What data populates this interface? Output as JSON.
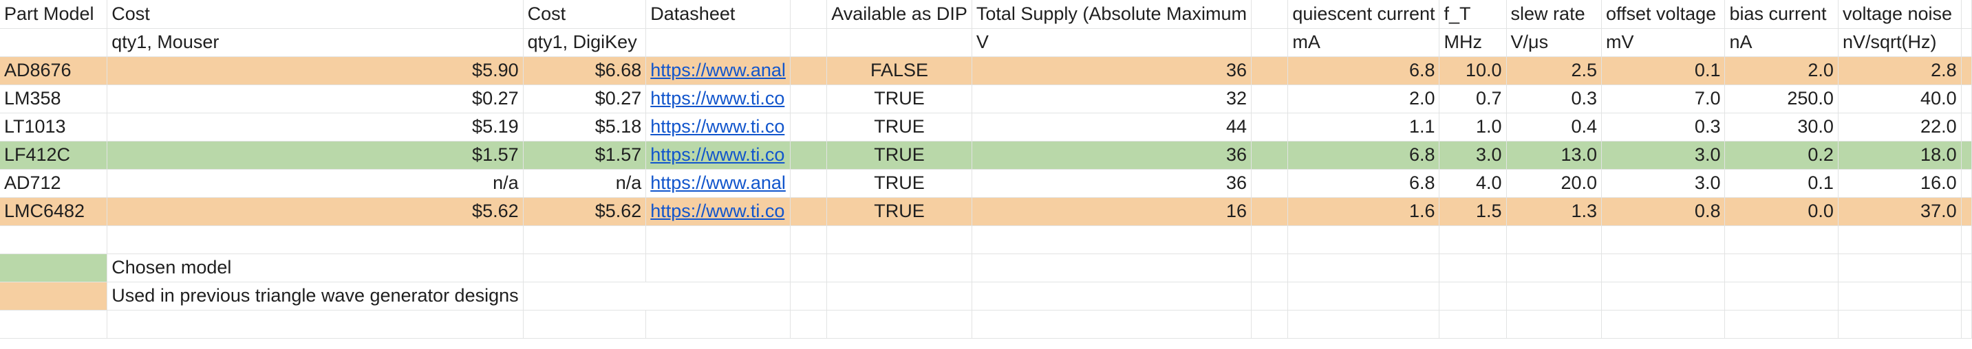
{
  "header": {
    "row1": [
      "Part Model",
      "Cost",
      "Cost",
      "Datasheet",
      "",
      "Available as DIP",
      "Total Supply (Absolute Maximum",
      "",
      "quiescent current",
      "f_T",
      "slew rate",
      "offset voltage",
      "bias current",
      "voltage noise",
      ""
    ],
    "row2": [
      "",
      "qty1, Mouser",
      "qty1, DigiKey",
      "",
      "",
      "",
      "V",
      "",
      "mA",
      "MHz",
      "V/μs",
      "mV",
      "nA",
      "nV/sqrt(Hz)",
      ""
    ]
  },
  "rows": [
    {
      "highlight": "orange",
      "model": "AD8676",
      "mouser": "$5.90",
      "digikey": "$6.68",
      "datasheet": "https://www.anal",
      "dip": "FALSE",
      "supply": "36",
      "iq": "6.8",
      "ft": "10.0",
      "slew": "2.5",
      "offset": "0.1",
      "bias": "2.0",
      "noise": "2.8"
    },
    {
      "highlight": "none",
      "model": "LM358",
      "mouser": "$0.27",
      "digikey": "$0.27",
      "datasheet": "https://www.ti.co",
      "dip": "TRUE",
      "supply": "32",
      "iq": "2.0",
      "ft": "0.7",
      "slew": "0.3",
      "offset": "7.0",
      "bias": "250.0",
      "noise": "40.0"
    },
    {
      "highlight": "none",
      "model": "LT1013",
      "mouser": "$5.19",
      "digikey": "$5.18",
      "datasheet": "https://www.ti.co",
      "dip": "TRUE",
      "supply": "44",
      "iq": "1.1",
      "ft": "1.0",
      "slew": "0.4",
      "offset": "0.3",
      "bias": "30.0",
      "noise": "22.0"
    },
    {
      "highlight": "green",
      "model": "LF412C",
      "mouser": "$1.57",
      "digikey": "$1.57",
      "datasheet": "https://www.ti.co",
      "dip": "TRUE",
      "supply": "36",
      "iq": "6.8",
      "ft": "3.0",
      "slew": "13.0",
      "offset": "3.0",
      "bias": "0.2",
      "noise": "18.0"
    },
    {
      "highlight": "none",
      "model": "AD712",
      "mouser": "n/a",
      "digikey": "n/a",
      "datasheet": "https://www.anal",
      "dip": "TRUE",
      "supply": "36",
      "iq": "6.8",
      "ft": "4.0",
      "slew": "20.0",
      "offset": "3.0",
      "bias": "0.1",
      "noise": "16.0"
    },
    {
      "highlight": "orange",
      "model": "LMC6482",
      "mouser": "$5.62",
      "digikey": "$5.62",
      "datasheet": "https://www.ti.co",
      "dip": "TRUE",
      "supply": "16",
      "iq": "1.6",
      "ft": "1.5",
      "slew": "1.3",
      "offset": "0.8",
      "bias": "0.0",
      "noise": "37.0"
    }
  ],
  "legend": {
    "chosen_label": "Chosen model",
    "chosen_color": "#b9d8a9",
    "previous_label": "Used in previous triangle wave generator designs",
    "previous_color": "#f6cfa1"
  },
  "colors": {
    "orange": "#f6cfa1",
    "green": "#b9d8a9",
    "link": "#1155cc",
    "gridline": "#e2e3e3"
  }
}
